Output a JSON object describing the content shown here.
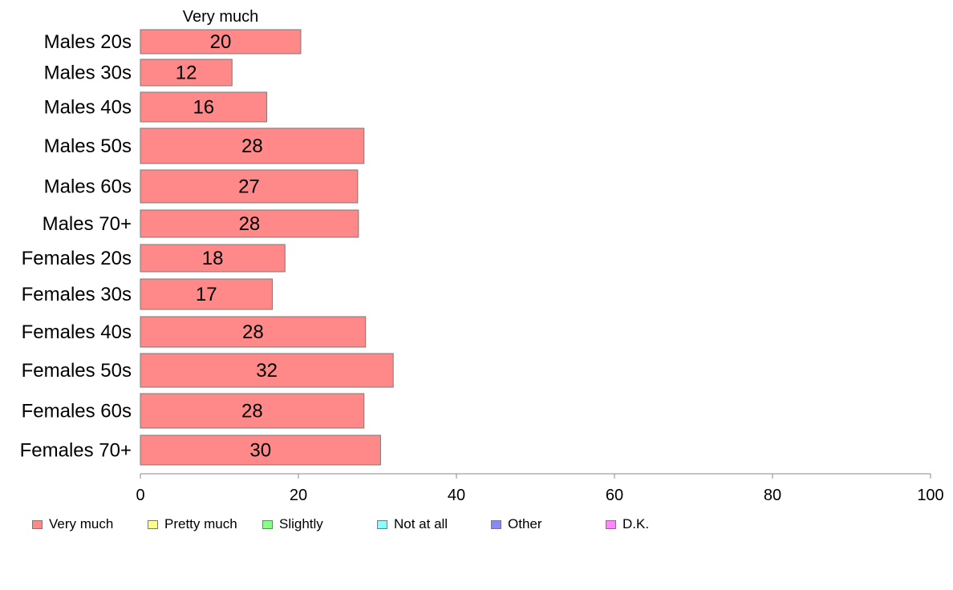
{
  "chart_data": {
    "type": "bar",
    "orientation": "horizontal",
    "stacked": true,
    "segment_label": "Very much",
    "categories": [
      "Males 20s",
      "Males 30s",
      "Males 40s",
      "Males 50s",
      "Males 60s",
      "Males 70+",
      "Females 20s",
      "Females 30s",
      "Females 40s",
      "Females 50s",
      "Females 60s",
      "Females 70+"
    ],
    "series": [
      {
        "name": "Very much",
        "color": "#ff8888",
        "values": [
          20.3,
          11.6,
          16.0,
          28.3,
          27.5,
          27.6,
          18.3,
          16.7,
          28.5,
          32.0,
          28.3,
          30.4
        ],
        "labels": [
          "20",
          "12",
          "16",
          "28",
          "27",
          "28",
          "18",
          "17",
          "28",
          "32",
          "28",
          "30"
        ]
      }
    ],
    "xlim": [
      0,
      100
    ],
    "xticks": [
      0,
      20,
      40,
      60,
      80,
      100
    ],
    "xtick_labels": [
      "0",
      "20",
      "40",
      "60",
      "80",
      "100"
    ],
    "grid": false,
    "legend": {
      "placement": "bottom",
      "entries": [
        {
          "label": "Very much",
          "color": "#ff8888"
        },
        {
          "label": "Pretty much",
          "color": "#ffff88"
        },
        {
          "label": "Slightly",
          "color": "#88ff88"
        },
        {
          "label": "Not at all",
          "color": "#88ffff"
        },
        {
          "label": "Other",
          "color": "#8888ff"
        },
        {
          "label": "D.K.",
          "color": "#ff88ff"
        }
      ]
    }
  }
}
